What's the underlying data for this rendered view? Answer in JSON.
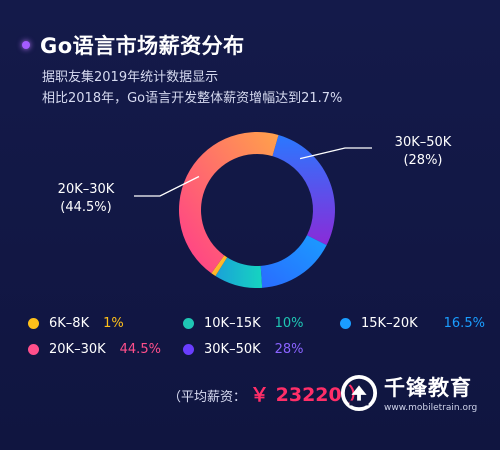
{
  "title": "Go语言市场薪资分布",
  "subtitle_line1": "据职友集2019年统计数据显示",
  "subtitle_line2": "相比2018年，Go语言开发整体薪资增幅达到21.7%",
  "colors": {
    "6K-8K": "#ffb400",
    "10K-15K": "#1fc6b4",
    "15K-20K": "#1a9dff",
    "20K-30K": "#ff4f8b",
    "30K-50K": "#6a3dff"
  },
  "chart_data": {
    "type": "pie",
    "variant": "donut",
    "slices": [
      {
        "label": "6K-8K",
        "value": 1,
        "pct_text": "1%",
        "pct_color": "#ffb400"
      },
      {
        "label": "10K-15K",
        "value": 10,
        "pct_text": "10%",
        "pct_color": "#1fc6b4"
      },
      {
        "label": "15K-20K",
        "value": 16.5,
        "pct_text": "16.5%",
        "pct_color": "#1a9dff"
      },
      {
        "label": "20K-30K",
        "value": 44.5,
        "pct_text": "44.5%",
        "pct_color": "#ff4f8b"
      },
      {
        "label": "30K-50K",
        "value": 28,
        "pct_text": "28%",
        "pct_color": "#8a63ff"
      }
    ],
    "callouts": [
      {
        "slice": "30K-50K",
        "line1": "30K–50K",
        "line2": "(28%)"
      },
      {
        "slice": "20K-30K",
        "line1": "20K–30K",
        "line2": "(44.5%)"
      }
    ]
  },
  "legend": [
    {
      "label": "6K–8K",
      "pct": "1%"
    },
    {
      "label": "10K–15K",
      "pct": "10%"
    },
    {
      "label": "15K–20K",
      "pct": "16.5%"
    },
    {
      "label": "20K–30K",
      "pct": "44.5%"
    },
    {
      "label": "30K–50K",
      "pct": "28%"
    }
  ],
  "average": {
    "label": "（平均薪资：",
    "value": "￥ 23220 ）"
  },
  "brand": {
    "name": "千锋教育",
    "url": "www.mobiletrain.org",
    "logo_icon": "qianfeng-logo-icon"
  }
}
